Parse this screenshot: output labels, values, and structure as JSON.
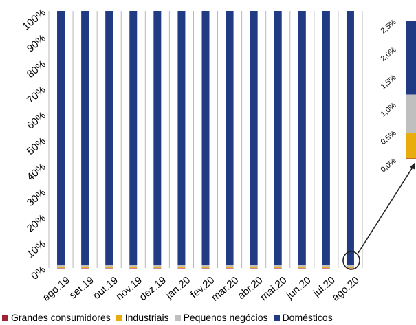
{
  "chart_data": [
    {
      "type": "bar",
      "stacked": true,
      "categories": [
        "ago.19",
        "set.19",
        "out.19",
        "nov.19",
        "dez.19",
        "jan.20",
        "fev.20",
        "mar.20",
        "abr.20",
        "mai.20",
        "jun.20",
        "jul.20",
        "ago.20"
      ],
      "y_ticks": [
        "0%",
        "10%",
        "20%",
        "30%",
        "40%",
        "50%",
        "60%",
        "70%",
        "80%",
        "90%",
        "100%"
      ],
      "ylim": [
        0,
        100
      ],
      "series": [
        {
          "name": "Grandes consumidores",
          "color": "#9b2335",
          "values": [
            0.02,
            0.02,
            0.02,
            0.02,
            0.02,
            0.02,
            0.02,
            0.02,
            0.02,
            0.02,
            0.02,
            0.02,
            0.02
          ]
        },
        {
          "name": "Industriais",
          "color": "#e8ad0c",
          "values": [
            0.45,
            0.45,
            0.45,
            0.45,
            0.45,
            0.45,
            0.45,
            0.45,
            0.45,
            0.45,
            0.45,
            0.45,
            0.45
          ]
        },
        {
          "name": "Pequenos negócios",
          "color": "#bfbfbf",
          "values": [
            0.7,
            0.7,
            0.7,
            0.7,
            0.7,
            0.7,
            0.7,
            0.7,
            0.7,
            0.7,
            0.7,
            0.7,
            0.7
          ]
        },
        {
          "name": "Domésticos",
          "color": "#203a84",
          "values": [
            98.83,
            98.83,
            98.83,
            98.83,
            98.83,
            98.83,
            98.83,
            98.83,
            98.83,
            98.83,
            98.83,
            98.83,
            98.83
          ]
        }
      ]
    },
    {
      "type": "bar",
      "stacked": true,
      "note": "zoom of ago.20, 0-2.5% range",
      "y_ticks": [
        "0,0%",
        "0,5%",
        "1,0%",
        "1,5%",
        "2,0%",
        "2,5%"
      ],
      "ylim": [
        0,
        2.5
      ],
      "segments": [
        {
          "series": "Grandes consumidores",
          "value": 0.02
        },
        {
          "series": "Industriais",
          "value": 0.45
        },
        {
          "series": "Pequenos negócios",
          "value": 0.7
        },
        {
          "series": "Domésticos",
          "value": 1.33
        }
      ]
    }
  ],
  "legend": [
    {
      "label": "Grandes consumidores",
      "color": "#9b2335"
    },
    {
      "label": "Industriais",
      "color": "#e8ad0c"
    },
    {
      "label": "Pequenos negócios",
      "color": "#bfbfbf"
    },
    {
      "label": "Domésticos",
      "color": "#203a84"
    }
  ]
}
